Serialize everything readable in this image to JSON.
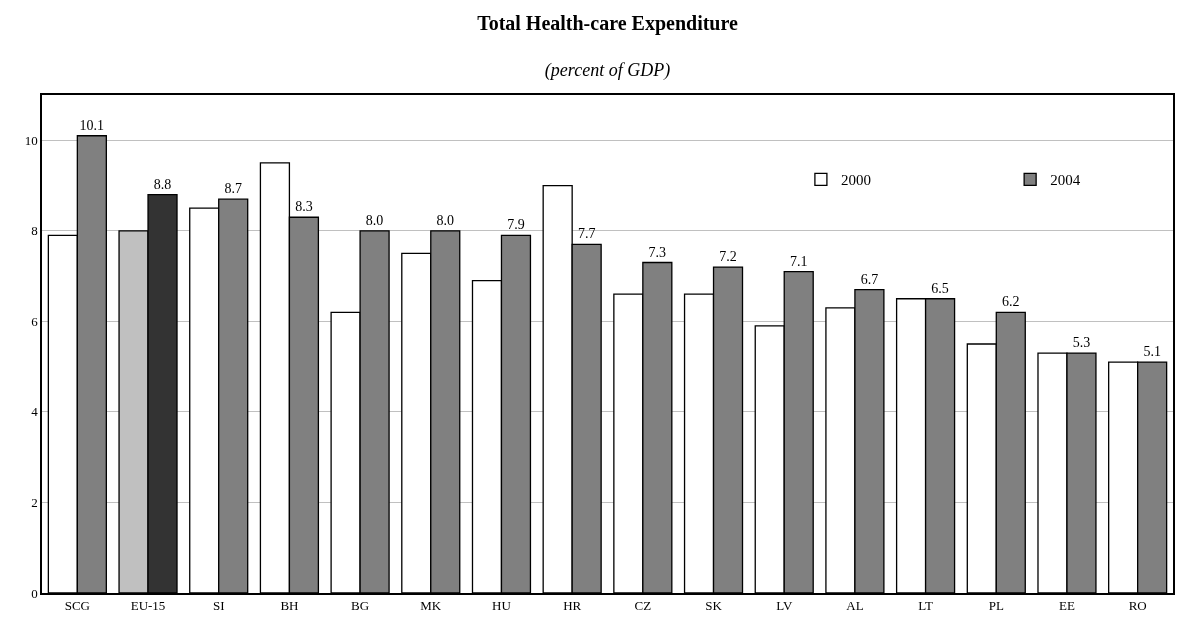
{
  "chart_data": {
    "type": "bar",
    "title": "Total Health-care Expenditure",
    "subtitle": "(percent of GDP)",
    "categories": [
      "SCG",
      "EU-15",
      "SI",
      "BH",
      "BG",
      "MK",
      "HU",
      "HR",
      "CZ",
      "SK",
      "LV",
      "AL",
      "LT",
      "PL",
      "EE",
      "RO"
    ],
    "series": [
      {
        "name": "2000",
        "colors": [
          "#ffffff",
          "#c0c0c0",
          "#ffffff",
          "#ffffff",
          "#ffffff",
          "#ffffff",
          "#ffffff",
          "#ffffff",
          "#ffffff",
          "#ffffff",
          "#ffffff",
          "#ffffff",
          "#ffffff",
          "#ffffff",
          "#ffffff",
          "#ffffff"
        ],
        "values": [
          7.9,
          8.0,
          8.5,
          9.5,
          6.2,
          7.5,
          6.9,
          9.0,
          6.6,
          6.6,
          5.9,
          6.3,
          6.5,
          5.5,
          5.3,
          5.1
        ]
      },
      {
        "name": "2004",
        "colors": [
          "#808080",
          "#333333",
          "#808080",
          "#808080",
          "#808080",
          "#808080",
          "#808080",
          "#808080",
          "#808080",
          "#808080",
          "#808080",
          "#808080",
          "#808080",
          "#808080",
          "#808080",
          "#808080"
        ],
        "values": [
          10.1,
          8.8,
          8.7,
          8.3,
          8.0,
          8.0,
          7.9,
          7.7,
          7.3,
          7.2,
          7.1,
          6.7,
          6.5,
          6.2,
          5.3,
          5.1
        ],
        "value_labels": [
          "10.1",
          "8.8",
          "8.7",
          "8.3",
          "8.0",
          "8.0",
          "7.9",
          "7.7",
          "7.3",
          "7.2",
          "7.1",
          "6.7",
          "6.5",
          "6.2",
          "5.3",
          "5.1"
        ]
      }
    ],
    "ylim": [
      0,
      11
    ],
    "yticks": [
      0,
      2,
      4,
      6,
      8,
      10
    ],
    "grid": "y",
    "legend": "top right"
  }
}
